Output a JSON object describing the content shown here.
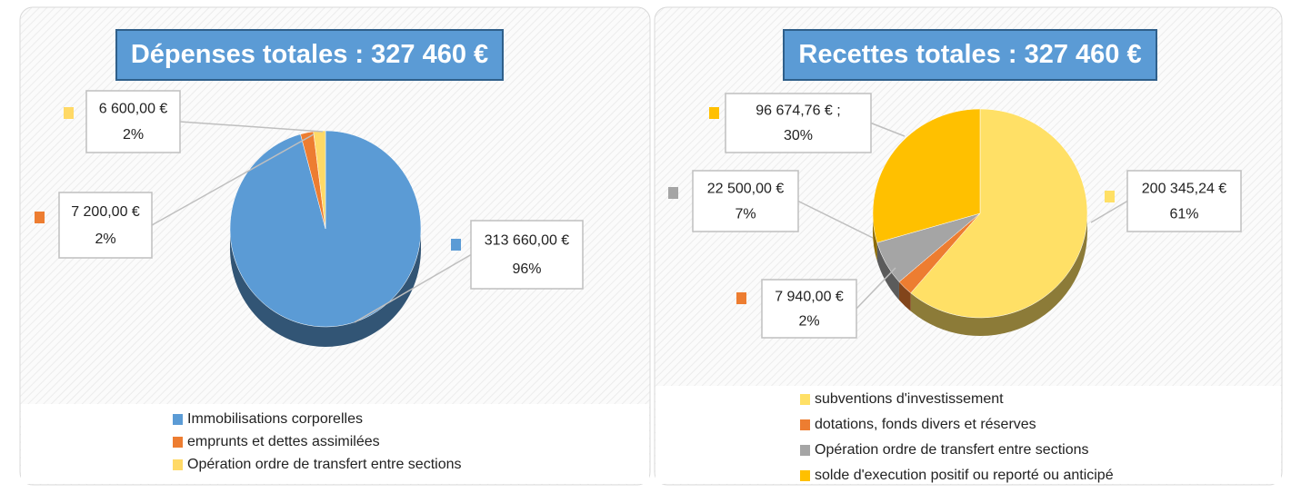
{
  "chart_data": [
    {
      "type": "pie",
      "title": "Dépenses totales : 327 460 €",
      "categories": [
        "Immobilisations corporelles",
        "emprunts et dettes assimilées",
        "Opération ordre de transfert entre sections"
      ],
      "values": [
        313660,
        7200,
        6600
      ],
      "value_labels": [
        "313 660,00 €",
        "7 200,00 €",
        "6 600,00 €"
      ],
      "percentages": [
        96,
        2,
        2
      ],
      "percentage_labels": [
        "96%",
        "2%",
        "2%"
      ],
      "colors": [
        "#5b9bd5",
        "#ed7d31",
        "#ffd966"
      ]
    },
    {
      "type": "pie",
      "title": "Recettes totales : 327 460 €",
      "categories": [
        "subventions d'investissement",
        "dotations, fonds divers et réserves",
        "Opération ordre de transfert entre sections",
        "solde d'execution positif ou reporté ou anticipé"
      ],
      "values": [
        200345.24,
        7940,
        22500,
        96674.76
      ],
      "value_labels": [
        "200 345,24 €",
        "7 940,00 €",
        "22 500,00 €",
        "96 674,76 € ;"
      ],
      "percentages": [
        61,
        2,
        7,
        30
      ],
      "percentage_labels": [
        "61%",
        "2%",
        "7%",
        "30%"
      ],
      "colors": [
        "#ffe066",
        "#ed7d31",
        "#a5a5a5",
        "#ffc000"
      ]
    }
  ]
}
